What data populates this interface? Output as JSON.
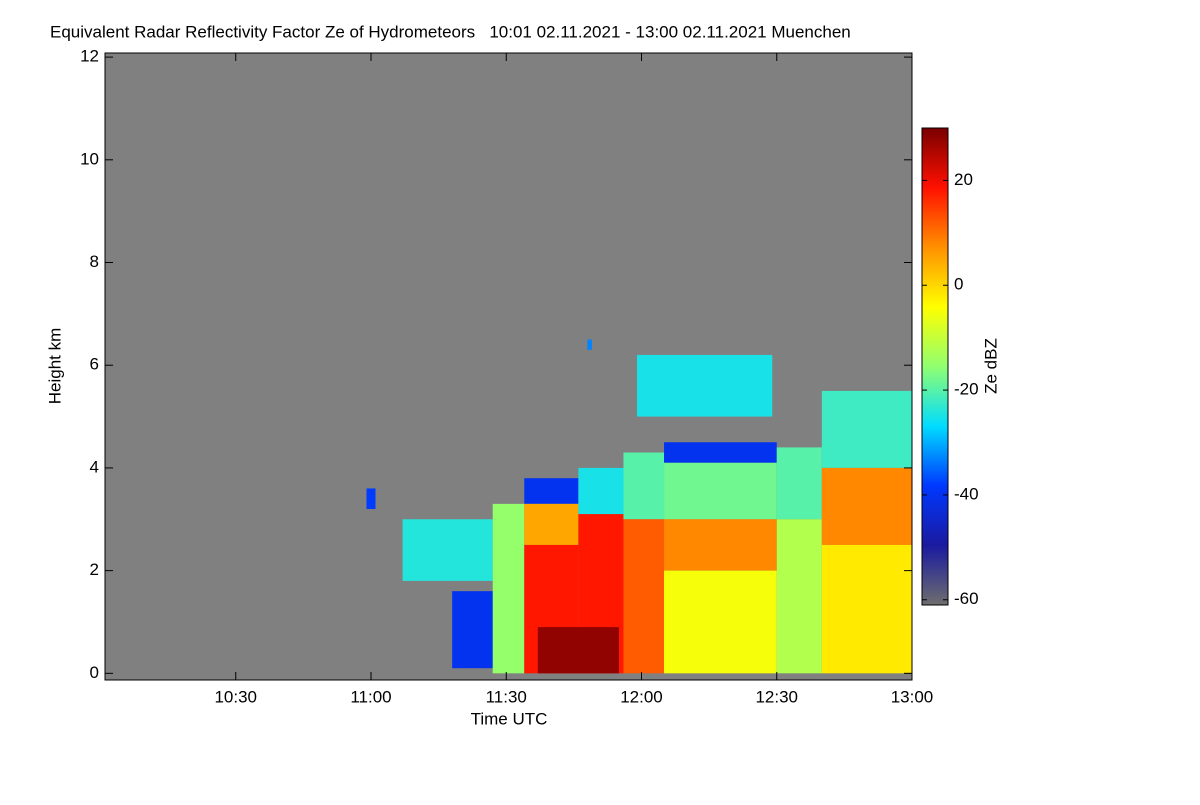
{
  "chart_data": {
    "type": "heatmap",
    "title": "Equivalent Radar Reflectivity Factor Ze of Hydrometeors   10:01 02.11.2021 - 13:00 02.11.2021 Muenchen",
    "x_label": "Time UTC",
    "y_label": "Height km",
    "colorbar_label": "Ze dBZ",
    "xlim": [
      601,
      780
    ],
    "xticks": [
      {
        "value": 630,
        "label": "10:30"
      },
      {
        "value": 660,
        "label": "11:00"
      },
      {
        "value": 690,
        "label": "11:30"
      },
      {
        "value": 720,
        "label": "12:00"
      },
      {
        "value": 750,
        "label": "12:30"
      },
      {
        "value": 780,
        "label": "13:00"
      }
    ],
    "ylim": [
      -0.13,
      12.08
    ],
    "yticks": [
      0,
      2,
      4,
      6,
      8,
      10,
      12
    ],
    "clim": [
      -61,
      30
    ],
    "cticks": [
      20,
      0,
      -20,
      -40,
      -60
    ],
    "background": "#808080",
    "colormap": [
      "#6e6e6e",
      "#1a1aa0",
      "#0038ff",
      "#00dcff",
      "#90ff70",
      "#ffff00",
      "#ff9000",
      "#ff1000",
      "#7a0000"
    ],
    "echoes": [
      {
        "t0": 659,
        "t1": 661,
        "h0": 3.2,
        "h1": 3.6,
        "ze": -38
      },
      {
        "t0": 708,
        "t1": 709,
        "h0": 6.3,
        "h1": 6.5,
        "ze": -33
      },
      {
        "t0": 719,
        "t1": 749,
        "h0": 5.0,
        "h1": 6.2,
        "ze": -25
      },
      {
        "t0": 667,
        "t1": 687,
        "h0": 1.8,
        "h1": 3.0,
        "ze": -24
      },
      {
        "t0": 678,
        "t1": 690,
        "h0": 0.1,
        "h1": 1.6,
        "ze": -40
      },
      {
        "t0": 687,
        "t1": 694,
        "h0": 0.0,
        "h1": 3.3,
        "ze": -15
      },
      {
        "t0": 694,
        "t1": 706,
        "h0": 3.3,
        "h1": 3.8,
        "ze": -40
      },
      {
        "t0": 694,
        "t1": 706,
        "h0": 2.5,
        "h1": 3.3,
        "ze": 5
      },
      {
        "t0": 694,
        "t1": 706,
        "h0": 0.0,
        "h1": 2.5,
        "ze": 18
      },
      {
        "t0": 706,
        "t1": 716,
        "h0": 3.1,
        "h1": 4.0,
        "ze": -25
      },
      {
        "t0": 706,
        "t1": 716,
        "h0": 0.0,
        "h1": 3.1,
        "ze": 18
      },
      {
        "t0": 697,
        "t1": 715,
        "h0": 0.0,
        "h1": 0.9,
        "ze": 28
      },
      {
        "t0": 716,
        "t1": 725,
        "h0": 3.0,
        "h1": 4.3,
        "ze": -20
      },
      {
        "t0": 716,
        "t1": 725,
        "h0": 0.0,
        "h1": 3.0,
        "ze": 12
      },
      {
        "t0": 725,
        "t1": 750,
        "h0": 4.1,
        "h1": 4.5,
        "ze": -40
      },
      {
        "t0": 725,
        "t1": 750,
        "h0": 3.0,
        "h1": 4.1,
        "ze": -18
      },
      {
        "t0": 725,
        "t1": 750,
        "h0": 2.0,
        "h1": 3.0,
        "ze": 8
      },
      {
        "t0": 725,
        "t1": 750,
        "h0": 0.0,
        "h1": 2.0,
        "ze": -5
      },
      {
        "t0": 750,
        "t1": 760,
        "h0": 3.0,
        "h1": 4.4,
        "ze": -20
      },
      {
        "t0": 750,
        "t1": 760,
        "h0": 0.0,
        "h1": 3.0,
        "ze": -12
      },
      {
        "t0": 760,
        "t1": 780,
        "h0": 4.0,
        "h1": 5.5,
        "ze": -22
      },
      {
        "t0": 760,
        "t1": 780,
        "h0": 2.5,
        "h1": 4.0,
        "ze": 8
      },
      {
        "t0": 760,
        "t1": 780,
        "h0": 0.0,
        "h1": 2.5,
        "ze": -2
      }
    ]
  }
}
